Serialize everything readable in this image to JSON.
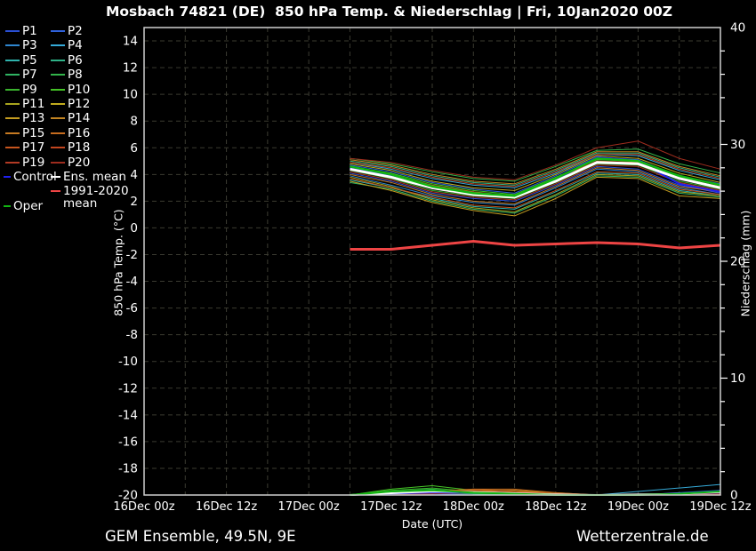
{
  "title": "Mosbach 74821 (DE)  850 hPa Temp. & Niederschlag | Fri, 10Jan2020 00Z",
  "footer": {
    "left": "GEM Ensemble, 49.5N, 9E",
    "right": "Wetterzentrale.de"
  },
  "chart_data": {
    "type": "line",
    "title": "Mosbach 74821 (DE)  850 hPa Temp. & Niederschlag | Fri, 10Jan2020 00Z",
    "background_color": "#000000",
    "grid": {
      "on": true,
      "color": "#3b3b31",
      "dash": "5 4"
    },
    "border_color": "#cfcfcf",
    "x_axis": {
      "label": "Date (UTC)",
      "range_hours": [
        0,
        84
      ],
      "tick_hours": [
        0,
        12,
        24,
        36,
        48,
        60,
        72,
        84
      ],
      "tick_labels": [
        "16Dec 00z",
        "16Dec 12z",
        "17Dec 00z",
        "17Dec 12z",
        "18Dec 00z",
        "18Dec 12z",
        "19Dec 00z",
        "19Dec 12z"
      ],
      "minor_grid_step_hours": 6
    },
    "y_left": {
      "label": "850 hPa Temp. (°C)",
      "min": -20,
      "max": 15,
      "tick_min": -20,
      "tick_max": 14,
      "tick_step": 2
    },
    "y_right": {
      "label": "Niederschlag (mm)",
      "min": 0,
      "max": 40,
      "tick_step": 10,
      "minor_tick_step": 2
    },
    "time_hours": [
      30,
      36,
      42,
      48,
      54,
      60,
      66,
      72,
      78,
      84
    ],
    "time_labels": [
      "17Dec 06z",
      "17Dec 12z",
      "17Dec 18z",
      "18Dec 00z",
      "18Dec 06z",
      "18Dec 12z",
      "18Dec 18z",
      "19Dec 00z",
      "19Dec 06z",
      "19Dec 12z"
    ],
    "temperature": {
      "members": [
        {
          "name": "P1",
          "color": "#2a4fd4",
          "values": [
            4.1,
            3.5,
            2.6,
            2.2,
            2.0,
            3.2,
            4.6,
            4.4,
            3.2,
            2.6
          ]
        },
        {
          "name": "P2",
          "color": "#2f62dc",
          "values": [
            4.7,
            4.2,
            3.4,
            2.9,
            2.6,
            3.9,
            5.3,
            5.1,
            3.9,
            3.3
          ]
        },
        {
          "name": "P3",
          "color": "#2f86cf",
          "values": [
            3.9,
            3.2,
            2.4,
            1.9,
            1.7,
            3.0,
            4.4,
            4.2,
            3.0,
            2.5
          ]
        },
        {
          "name": "P4",
          "color": "#35aad8",
          "values": [
            4.9,
            4.4,
            3.7,
            3.2,
            3.0,
            4.1,
            5.5,
            5.4,
            4.3,
            3.6
          ]
        },
        {
          "name": "P5",
          "color": "#2fb3ad",
          "values": [
            3.6,
            3.0,
            2.2,
            1.6,
            1.4,
            2.7,
            4.1,
            4.0,
            2.8,
            2.4
          ]
        },
        {
          "name": "P6",
          "color": "#2fb388",
          "values": [
            5.0,
            4.6,
            3.9,
            3.4,
            3.2,
            4.3,
            5.6,
            5.6,
            4.5,
            3.8
          ]
        },
        {
          "name": "P7",
          "color": "#2fb363",
          "values": [
            3.4,
            2.9,
            2.0,
            1.4,
            1.1,
            2.4,
            3.9,
            3.8,
            2.6,
            2.3
          ]
        },
        {
          "name": "P8",
          "color": "#32b44a",
          "values": [
            5.2,
            4.8,
            4.2,
            3.7,
            3.5,
            4.6,
            5.8,
            5.9,
            4.8,
            4.1
          ]
        },
        {
          "name": "P9",
          "color": "#3ab32e",
          "values": [
            4.3,
            3.7,
            2.8,
            2.4,
            2.2,
            3.4,
            4.8,
            4.7,
            3.5,
            2.9
          ]
        },
        {
          "name": "P10",
          "color": "#44c226",
          "values": [
            4.6,
            4.1,
            3.3,
            2.8,
            2.5,
            3.8,
            5.1,
            5.0,
            3.8,
            3.2
          ]
        },
        {
          "name": "P11",
          "color": "#a8a41e",
          "values": [
            3.8,
            3.1,
            2.1,
            1.5,
            1.2,
            2.5,
            4.0,
            3.9,
            2.7,
            2.4
          ]
        },
        {
          "name": "P12",
          "color": "#c2ac1e",
          "values": [
            4.8,
            4.3,
            3.5,
            3.0,
            2.8,
            4.0,
            5.4,
            5.2,
            4.1,
            3.4
          ]
        },
        {
          "name": "P13",
          "color": "#c49c20",
          "values": [
            3.5,
            2.8,
            1.9,
            1.3,
            0.9,
            2.2,
            3.8,
            3.7,
            2.4,
            2.2
          ]
        },
        {
          "name": "P14",
          "color": "#c28422",
          "values": [
            5.1,
            4.7,
            4.0,
            3.5,
            3.3,
            4.4,
            5.7,
            5.7,
            4.6,
            3.9
          ]
        },
        {
          "name": "P15",
          "color": "#c67a22",
          "values": [
            4.0,
            3.4,
            2.5,
            2.0,
            1.8,
            3.1,
            4.5,
            4.3,
            3.1,
            2.7
          ]
        },
        {
          "name": "P16",
          "color": "#c66c1f",
          "values": [
            4.5,
            4.0,
            3.2,
            2.7,
            2.4,
            3.7,
            5.0,
            4.9,
            3.7,
            3.1
          ]
        },
        {
          "name": "P17",
          "color": "#c6551e",
          "values": [
            3.7,
            3.0,
            2.3,
            1.7,
            1.5,
            2.8,
            4.2,
            4.1,
            2.9,
            2.5
          ]
        },
        {
          "name": "P18",
          "color": "#c2461f",
          "values": [
            4.9,
            4.5,
            3.8,
            3.3,
            3.1,
            4.2,
            5.5,
            5.5,
            4.4,
            3.7
          ]
        },
        {
          "name": "P19",
          "color": "#b23a24",
          "values": [
            4.2,
            3.6,
            2.7,
            2.3,
            2.1,
            3.3,
            4.7,
            4.6,
            3.4,
            2.8
          ]
        },
        {
          "name": "P20",
          "color": "#9e2c1e",
          "values": [
            5.2,
            4.9,
            4.3,
            3.8,
            3.6,
            4.7,
            6.0,
            6.5,
            5.2,
            4.4
          ]
        }
      ],
      "control": {
        "name": "Control",
        "color": "#2020f0",
        "values": [
          4.5,
          3.9,
          3.0,
          2.5,
          2.3,
          3.6,
          5.3,
          5.0,
          3.3,
          2.7
        ]
      },
      "ens_mean": {
        "name": "Ens. mean",
        "color": "#ffffff",
        "values": [
          4.4,
          3.8,
          3.0,
          2.5,
          2.3,
          3.5,
          4.9,
          4.8,
          3.7,
          3.0
        ]
      },
      "oper": {
        "name": "Oper",
        "color": "#12b512",
        "values": [
          4.6,
          4.0,
          3.1,
          2.6,
          2.4,
          3.7,
          5.2,
          5.0,
          3.9,
          3.2
        ]
      },
      "clim_mean": {
        "name": "1991-2020 mean",
        "color": "#ee4444",
        "values": [
          -1.6,
          -1.6,
          -1.3,
          -1.0,
          -1.3,
          -1.2,
          -1.1,
          -1.2,
          -1.5,
          -1.3
        ]
      }
    },
    "precipitation": {
      "members": [
        {
          "name": "P1",
          "values": [
            0,
            0,
            0.1,
            0,
            0,
            0,
            0,
            0,
            0.1,
            0.2
          ]
        },
        {
          "name": "P2",
          "values": [
            0,
            0.1,
            0.1,
            0.1,
            0,
            0,
            0,
            0,
            0.2,
            0.4
          ]
        },
        {
          "name": "P3",
          "values": [
            0,
            0,
            0.1,
            0.2,
            0.1,
            0,
            0,
            0,
            0.1,
            0.3
          ]
        },
        {
          "name": "P4",
          "values": [
            0,
            0.1,
            0.2,
            0.1,
            0,
            0,
            0,
            0.3,
            0.6,
            0.9
          ]
        },
        {
          "name": "P5",
          "values": [
            0,
            0.2,
            0.3,
            0.1,
            0,
            0,
            0,
            0,
            0.1,
            0.2
          ]
        },
        {
          "name": "P6",
          "values": [
            0,
            0.3,
            0.4,
            0.2,
            0.1,
            0,
            0,
            0,
            0.1,
            0.3
          ]
        },
        {
          "name": "P7",
          "values": [
            0,
            0.2,
            0.2,
            0.1,
            0,
            0,
            0,
            0,
            0,
            0.2
          ]
        },
        {
          "name": "P8",
          "values": [
            0,
            0.3,
            0.5,
            0.2,
            0.1,
            0,
            0,
            0,
            0.1,
            0.2
          ]
        },
        {
          "name": "P9",
          "values": [
            0,
            0.4,
            0.6,
            0.3,
            0.1,
            0,
            0,
            0,
            0,
            0.2
          ]
        },
        {
          "name": "P10",
          "values": [
            0,
            0.5,
            0.8,
            0.4,
            0.1,
            0,
            0,
            0,
            0.1,
            0.3
          ]
        },
        {
          "name": "P11",
          "values": [
            0,
            0.1,
            0.2,
            0.3,
            0.2,
            0,
            0,
            0,
            0,
            0.1
          ]
        },
        {
          "name": "P12",
          "values": [
            0,
            0.1,
            0.2,
            0.4,
            0.3,
            0.1,
            0,
            0,
            0,
            0.1
          ]
        },
        {
          "name": "P13",
          "values": [
            0,
            0,
            0.1,
            0.3,
            0.4,
            0.1,
            0,
            0,
            0,
            0.1
          ]
        },
        {
          "name": "P14",
          "values": [
            0,
            0.1,
            0.2,
            0.4,
            0.4,
            0.2,
            0,
            0,
            0,
            0.1
          ]
        },
        {
          "name": "P15",
          "values": [
            0,
            0.1,
            0.3,
            0.5,
            0.3,
            0.1,
            0,
            0,
            0,
            0.1
          ]
        },
        {
          "name": "P16",
          "values": [
            0,
            0.1,
            0.3,
            0.5,
            0.5,
            0.2,
            0,
            0,
            0.1,
            0.2
          ]
        },
        {
          "name": "P17",
          "values": [
            0,
            0,
            0.2,
            0.4,
            0.3,
            0.1,
            0,
            0,
            0,
            0.1
          ]
        },
        {
          "name": "P18",
          "values": [
            0,
            0.1,
            0.2,
            0.3,
            0.2,
            0.1,
            0,
            0,
            0,
            0.1
          ]
        },
        {
          "name": "P19",
          "values": [
            0,
            0,
            0.1,
            0.2,
            0.2,
            0,
            0,
            0,
            0,
            0.1
          ]
        },
        {
          "name": "P20",
          "values": [
            0,
            0,
            0.1,
            0.2,
            0.1,
            0,
            0,
            0,
            0,
            0.1
          ]
        }
      ],
      "control": {
        "name": "Control",
        "values": [
          0,
          0.1,
          0.2,
          0.2,
          0.1,
          0,
          0,
          0,
          0.1,
          0.2
        ]
      },
      "ens_mean": {
        "name": "Ens. mean",
        "values": [
          0,
          0.15,
          0.3,
          0.25,
          0.15,
          0.05,
          0,
          0.05,
          0.1,
          0.25
        ]
      },
      "oper": {
        "name": "Oper",
        "values": [
          0,
          0.3,
          0.4,
          0.2,
          0.1,
          0,
          0,
          0,
          0.1,
          0.3
        ]
      }
    },
    "legend_position": "top-left"
  }
}
